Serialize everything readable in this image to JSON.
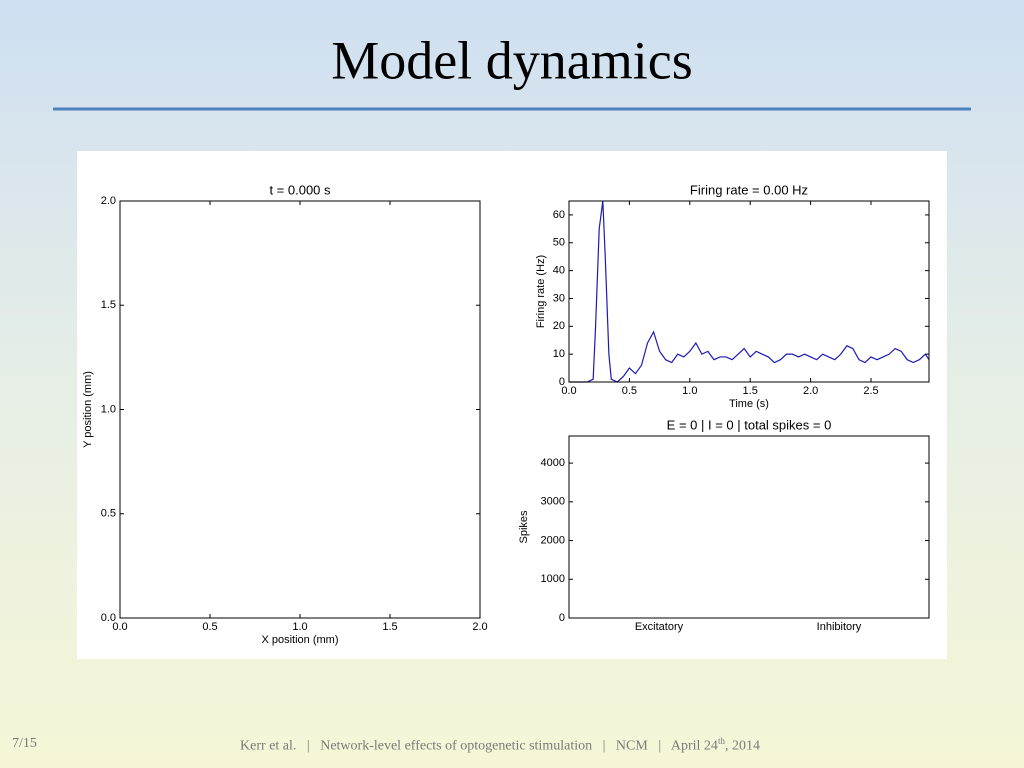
{
  "slide_title": "Model dynamics",
  "footer": {
    "page": "7/15",
    "author": "Kerr et al.",
    "separator": "|",
    "talk": "Network-level effects of optogenetic stimulation",
    "venue": "NCM",
    "date_main": "April 24",
    "date_sup": "th",
    "date_year": ", 2014"
  },
  "chart_data": [
    {
      "type": "scatter",
      "title": "t = 0.000 s",
      "xlabel": "X position (mm)",
      "ylabel": "Y position (mm)",
      "xlim": [
        0,
        2
      ],
      "ylim": [
        0,
        2
      ],
      "xticks": [
        {
          "value": 0,
          "label": "0.0"
        },
        {
          "value": 0.5,
          "label": "0.5"
        },
        {
          "value": 1,
          "label": "1.0"
        },
        {
          "value": 1.5,
          "label": "1.5"
        },
        {
          "value": 2,
          "label": "2.0"
        }
      ],
      "yticks": [
        {
          "value": 0,
          "label": "0.0"
        },
        {
          "value": 0.5,
          "label": "0.5"
        },
        {
          "value": 1,
          "label": "1.0"
        },
        {
          "value": 1.5,
          "label": "1.5"
        },
        {
          "value": 2,
          "label": "2.0"
        }
      ],
      "series": []
    },
    {
      "type": "line",
      "title": "Firing rate = 0.00 Hz",
      "xlabel": "Time (s)",
      "ylabel": "Firing rate (Hz)",
      "xlim": [
        0,
        2.98
      ],
      "ylim": [
        0,
        65
      ],
      "xticks": [
        {
          "value": 0,
          "label": "0.0"
        },
        {
          "value": 0.5,
          "label": "0.5"
        },
        {
          "value": 1,
          "label": "1.0"
        },
        {
          "value": 1.5,
          "label": "1.5"
        },
        {
          "value": 2,
          "label": "2.0"
        },
        {
          "value": 2.5,
          "label": "2.5"
        }
      ],
      "yticks": [
        0,
        10,
        20,
        30,
        40,
        50,
        60
      ],
      "x": [
        0,
        0.05,
        0.1,
        0.15,
        0.2,
        0.22,
        0.25,
        0.28,
        0.3,
        0.33,
        0.35,
        0.4,
        0.45,
        0.5,
        0.55,
        0.6,
        0.65,
        0.7,
        0.75,
        0.8,
        0.85,
        0.9,
        0.95,
        1.0,
        1.05,
        1.1,
        1.15,
        1.2,
        1.25,
        1.3,
        1.35,
        1.4,
        1.45,
        1.5,
        1.55,
        1.6,
        1.65,
        1.7,
        1.75,
        1.8,
        1.85,
        1.9,
        1.95,
        2.0,
        2.05,
        2.1,
        2.15,
        2.2,
        2.25,
        2.3,
        2.35,
        2.4,
        2.45,
        2.5,
        2.55,
        2.6,
        2.65,
        2.7,
        2.75,
        2.8,
        2.85,
        2.9,
        2.95,
        2.98
      ],
      "series": [
        {
          "color": "#1a1ab8",
          "values": [
            0,
            0,
            0,
            0,
            1,
            20,
            55,
            65,
            45,
            10,
            1,
            0,
            2,
            5,
            3,
            6,
            14,
            18,
            11,
            8,
            7,
            10,
            9,
            11,
            14,
            10,
            11,
            8,
            9,
            9,
            8,
            10,
            12,
            9,
            11,
            10,
            9,
            7,
            8,
            10,
            10,
            9,
            10,
            9,
            8,
            10,
            9,
            8,
            10,
            13,
            12,
            8,
            7,
            9,
            8,
            9,
            10,
            12,
            11,
            8,
            7,
            8,
            10,
            8
          ]
        }
      ]
    },
    {
      "type": "bar",
      "title": "E = 0 | I = 0 | total spikes = 0",
      "ylabel": "Spikes",
      "categories": [
        "Excitatory",
        "Inhibitory"
      ],
      "values": [
        0,
        0
      ],
      "color": "#1a1ab8",
      "ylim": [
        0,
        4700
      ],
      "yticks": [
        0,
        1000,
        2000,
        3000,
        4000
      ]
    }
  ]
}
